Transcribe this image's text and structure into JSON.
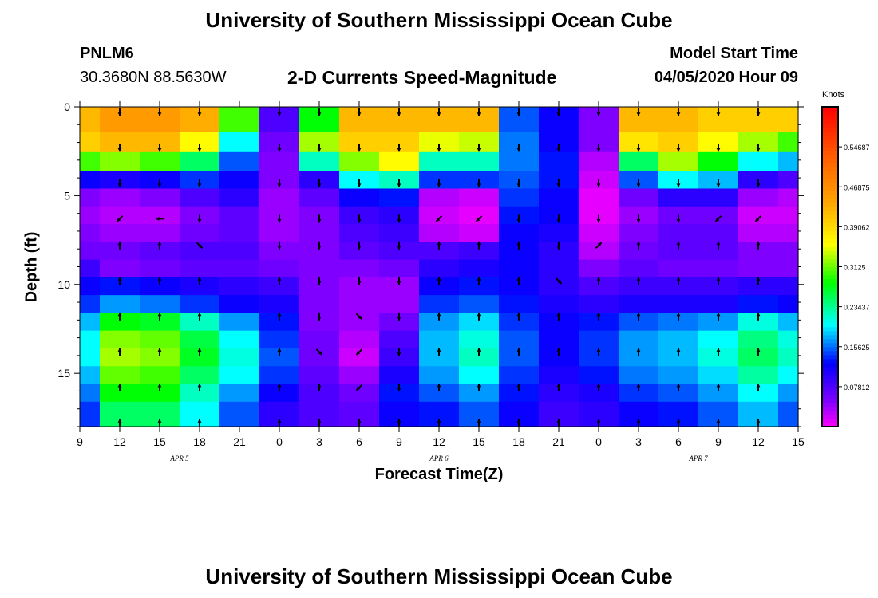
{
  "header": {
    "title": "University of Southern Mississippi Ocean Cube",
    "footer_title": "University of Southern Mississippi Ocean Cube",
    "station_id": "PNLM6",
    "station_coords": "30.3680N 88.5630W",
    "chart_title": "2-D Currents Speed-Magnitude",
    "model_label": "Model Start Time",
    "model_time": "04/05/2020 Hour 09"
  },
  "chart_data": {
    "type": "heatmap",
    "xlabel": "Forecast Time(Z)",
    "ylabel": "Depth (ft)",
    "y_ticks": [
      0,
      5,
      10,
      15
    ],
    "ylim": [
      0,
      18
    ],
    "y_inverted": true,
    "x_tick_labels": [
      "9",
      "12",
      "15",
      "18",
      "21",
      "0",
      "3",
      "6",
      "9",
      "12",
      "15",
      "18",
      "21",
      "0",
      "3",
      "6",
      "9",
      "12",
      "15"
    ],
    "x_range_hours": [
      0,
      54
    ],
    "day_labels": [
      {
        "label": "APR 5",
        "hour": 7.5
      },
      {
        "label": "APR 6",
        "hour": 27
      },
      {
        "label": "APR 7",
        "hour": 46.5
      }
    ],
    "colorbar": {
      "unit": "Knots",
      "ticks": [
        "0.07812",
        "0.15625",
        "0.23437",
        "0.3125",
        "0.39062",
        "0.46875",
        "0.54687"
      ],
      "min": 0.0,
      "max": 0.625
    },
    "depth_levels_ft": [
      0.8,
      2,
      3.1,
      4.1,
      5.1,
      6.1,
      7.1,
      8.1,
      9.1,
      10.1,
      11.1,
      12.1,
      13.1,
      14.1,
      15.1,
      16.1,
      17.1
    ],
    "speed_profiles": [
      {
        "hour": 0,
        "speeds": [
          0.42,
          0.4,
          0.3,
          0.12,
          0.05,
          0.04,
          0.05,
          0.06,
          0.09,
          0.12,
          0.14,
          0.18,
          0.2,
          0.2,
          0.18,
          0.16,
          0.14
        ]
      },
      {
        "hour": 3,
        "speeds": [
          0.45,
          0.42,
          0.32,
          0.11,
          0.04,
          0.03,
          0.04,
          0.06,
          0.05,
          0.13,
          0.17,
          0.28,
          0.32,
          0.33,
          0.31,
          0.28,
          0.25
        ]
      },
      {
        "hour": 6,
        "speeds": [
          0.45,
          0.42,
          0.3,
          0.12,
          0.05,
          0.03,
          0.04,
          0.07,
          0.06,
          0.12,
          0.16,
          0.27,
          0.31,
          0.32,
          0.3,
          0.28,
          0.25
        ]
      },
      {
        "hour": 9,
        "speeds": [
          0.43,
          0.36,
          0.25,
          0.14,
          0.08,
          0.05,
          0.06,
          0.08,
          0.07,
          0.11,
          0.14,
          0.22,
          0.26,
          0.27,
          0.25,
          0.22,
          0.2
        ]
      },
      {
        "hour": 12,
        "speeds": [
          0.3,
          0.2,
          0.15,
          0.12,
          0.1,
          0.07,
          0.07,
          0.08,
          0.07,
          0.1,
          0.12,
          0.17,
          0.2,
          0.21,
          0.2,
          0.17,
          0.15
        ]
      },
      {
        "hour": 15,
        "speeds": [
          0.08,
          0.06,
          0.05,
          0.05,
          0.04,
          0.04,
          0.04,
          0.05,
          0.06,
          0.09,
          0.11,
          0.13,
          0.14,
          0.15,
          0.14,
          0.12,
          0.1
        ]
      },
      {
        "hour": 18,
        "speeds": [
          0.28,
          0.33,
          0.22,
          0.1,
          0.07,
          0.05,
          0.05,
          0.05,
          0.05,
          0.05,
          0.05,
          0.05,
          0.06,
          0.06,
          0.07,
          0.08,
          0.08
        ]
      },
      {
        "hour": 21,
        "speeds": [
          0.42,
          0.4,
          0.32,
          0.2,
          0.12,
          0.09,
          0.08,
          0.07,
          0.05,
          0.04,
          0.04,
          0.04,
          0.03,
          0.02,
          0.04,
          0.06,
          0.07
        ]
      },
      {
        "hour": 24,
        "speeds": [
          0.42,
          0.4,
          0.36,
          0.22,
          0.13,
          0.1,
          0.09,
          0.08,
          0.06,
          0.04,
          0.04,
          0.06,
          0.08,
          0.09,
          0.11,
          0.13,
          0.12
        ]
      },
      {
        "hour": 27,
        "speeds": [
          0.42,
          0.35,
          0.22,
          0.14,
          0.03,
          0.02,
          0.03,
          0.08,
          0.1,
          0.12,
          0.14,
          0.17,
          0.18,
          0.18,
          0.17,
          0.15,
          0.13
        ]
      },
      {
        "hour": 30,
        "speeds": [
          0.42,
          0.34,
          0.22,
          0.14,
          0.02,
          0.01,
          0.02,
          0.09,
          0.11,
          0.13,
          0.15,
          0.19,
          0.21,
          0.22,
          0.2,
          0.17,
          0.15
        ]
      },
      {
        "hour": 33,
        "speeds": [
          0.15,
          0.16,
          0.16,
          0.15,
          0.14,
          0.13,
          0.12,
          0.12,
          0.12,
          0.12,
          0.13,
          0.14,
          0.15,
          0.15,
          0.14,
          0.13,
          0.12
        ]
      },
      {
        "hour": 36,
        "speeds": [
          0.12,
          0.12,
          0.13,
          0.13,
          0.12,
          0.12,
          0.11,
          0.1,
          0.1,
          0.1,
          0.11,
          0.12,
          0.12,
          0.12,
          0.11,
          0.1,
          0.09
        ]
      },
      {
        "hour": 39,
        "speeds": [
          0.05,
          0.05,
          0.03,
          0.02,
          0.01,
          0.01,
          0.02,
          0.03,
          0.05,
          0.08,
          0.1,
          0.13,
          0.14,
          0.14,
          0.13,
          0.11,
          0.1
        ]
      },
      {
        "hour": 42,
        "speeds": [
          0.42,
          0.38,
          0.25,
          0.15,
          0.06,
          0.04,
          0.05,
          0.06,
          0.07,
          0.09,
          0.11,
          0.15,
          0.17,
          0.17,
          0.16,
          0.14,
          0.12
        ]
      },
      {
        "hour": 45,
        "speeds": [
          0.42,
          0.4,
          0.33,
          0.2,
          0.1,
          0.06,
          0.07,
          0.07,
          0.06,
          0.09,
          0.11,
          0.16,
          0.18,
          0.18,
          0.17,
          0.15,
          0.13
        ]
      },
      {
        "hour": 48,
        "speeds": [
          0.4,
          0.36,
          0.28,
          0.18,
          0.1,
          0.06,
          0.07,
          0.07,
          0.06,
          0.09,
          0.11,
          0.17,
          0.2,
          0.21,
          0.19,
          0.17,
          0.15
        ]
      },
      {
        "hour": 51,
        "speeds": [
          0.4,
          0.33,
          0.2,
          0.1,
          0.04,
          0.02,
          0.03,
          0.05,
          0.05,
          0.1,
          0.13,
          0.21,
          0.24,
          0.25,
          0.23,
          0.2,
          0.18
        ]
      },
      {
        "hour": 54,
        "speeds": [
          0.4,
          0.3,
          0.18,
          0.08,
          0.03,
          0.02,
          0.03,
          0.05,
          0.05,
          0.1,
          0.12,
          0.18,
          0.21,
          0.22,
          0.2,
          0.17,
          0.15
        ]
      }
    ],
    "arrow_depths_ft": [
      0.3,
      2.3,
      4.3,
      6.3,
      7.8,
      9.8,
      11.8,
      13.8,
      15.8,
      17.8
    ],
    "arrow_columns": [
      {
        "hour": 3,
        "dirs": [
          "S",
          "S",
          "S",
          "SW",
          "N",
          "N",
          "N",
          "N",
          "N",
          "N"
        ]
      },
      {
        "hour": 6,
        "dirs": [
          "S",
          "S",
          "S",
          "W",
          "N",
          "N",
          "N",
          "N",
          "N",
          "N"
        ]
      },
      {
        "hour": 9,
        "dirs": [
          "S",
          "S",
          "S",
          "S",
          "SE",
          "N",
          "N",
          "N",
          "N",
          "N"
        ]
      },
      {
        "hour": 15,
        "dirs": [
          "S",
          "S",
          "S",
          "S",
          "S",
          "N",
          "N",
          "N",
          "N",
          "N"
        ]
      },
      {
        "hour": 18,
        "dirs": [
          "S",
          "S",
          "S",
          "S",
          "S",
          "S",
          "S",
          "SE",
          "N",
          "N"
        ]
      },
      {
        "hour": 21,
        "dirs": [
          "S",
          "S",
          "S",
          "S",
          "S",
          "S",
          "SE",
          "SW",
          "SW",
          "N"
        ]
      },
      {
        "hour": 24,
        "dirs": [
          "S",
          "S",
          "S",
          "S",
          "S",
          "S",
          "S",
          "S",
          "S",
          "N"
        ]
      },
      {
        "hour": 27,
        "dirs": [
          "S",
          "S",
          "S",
          "SW",
          "N",
          "N",
          "N",
          "N",
          "N",
          "N"
        ]
      },
      {
        "hour": 30,
        "dirs": [
          "S",
          "S",
          "S",
          "SW",
          "N",
          "N",
          "N",
          "N",
          "N",
          "N"
        ]
      },
      {
        "hour": 33,
        "dirs": [
          "S",
          "S",
          "S",
          "S",
          "N",
          "N",
          "N",
          "N",
          "N",
          "N"
        ]
      },
      {
        "hour": 36,
        "dirs": [
          "S",
          "S",
          "S",
          "S",
          "S",
          "SE",
          "N",
          "N",
          "N",
          "N"
        ]
      },
      {
        "hour": 39,
        "dirs": [
          "S",
          "S",
          "S",
          "S",
          "NE",
          "N",
          "N",
          "N",
          "N",
          "N"
        ]
      },
      {
        "hour": 42,
        "dirs": [
          "S",
          "S",
          "S",
          "S",
          "N",
          "N",
          "N",
          "N",
          "N",
          "N"
        ]
      },
      {
        "hour": 45,
        "dirs": [
          "S",
          "S",
          "S",
          "S",
          "N",
          "N",
          "N",
          "N",
          "N",
          "N"
        ]
      },
      {
        "hour": 48,
        "dirs": [
          "S",
          "S",
          "S",
          "SW",
          "N",
          "N",
          "N",
          "N",
          "N",
          "N"
        ]
      },
      {
        "hour": 51,
        "dirs": [
          "S",
          "S",
          "S",
          "SW",
          "N",
          "N",
          "N",
          "N",
          "N",
          "N"
        ]
      }
    ]
  }
}
